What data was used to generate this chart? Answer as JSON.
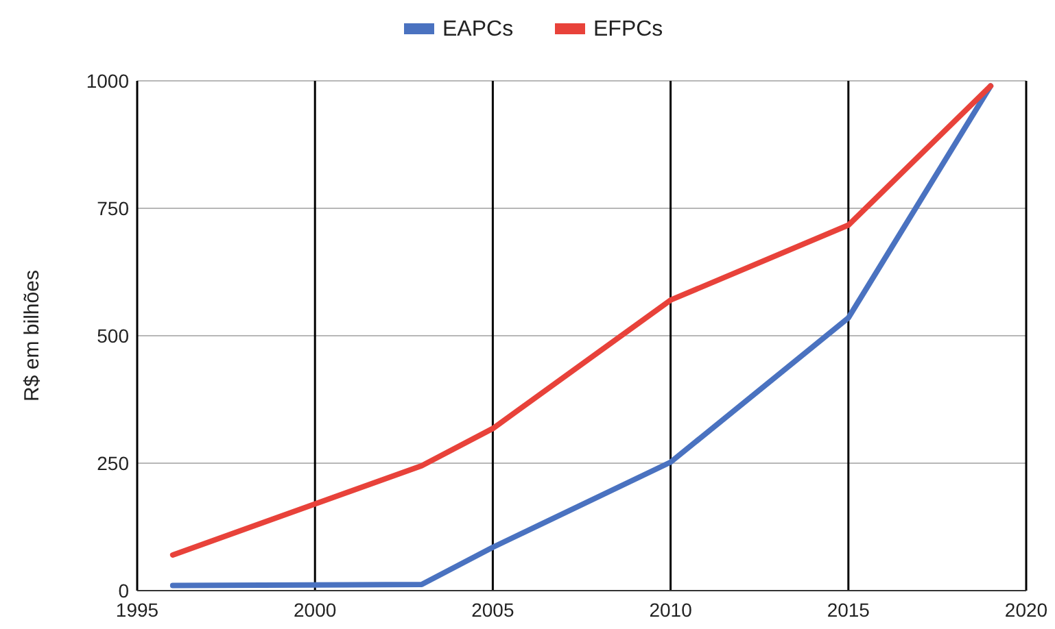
{
  "chart_data": {
    "type": "line",
    "ylabel": "R$ em bilhões",
    "xlim": [
      1995,
      2020
    ],
    "xticks": [
      1995,
      2000,
      2005,
      2010,
      2015,
      2020
    ],
    "ylim": [
      0,
      1000
    ],
    "yticks": [
      0,
      250,
      500,
      750,
      1000
    ],
    "grid": true,
    "legend": "top",
    "series": [
      {
        "name": "EAPCs",
        "color": "#4a72c0",
        "x": [
          1996,
          2003,
          2005,
          2010,
          2015,
          2019
        ],
        "values": [
          10,
          12,
          85,
          252,
          535,
          990
        ]
      },
      {
        "name": "EFPCs",
        "color": "#e8423a",
        "x": [
          1996,
          2000,
          2003,
          2005,
          2010,
          2015,
          2019
        ],
        "values": [
          70,
          170,
          245,
          318,
          570,
          717,
          990
        ]
      }
    ]
  }
}
